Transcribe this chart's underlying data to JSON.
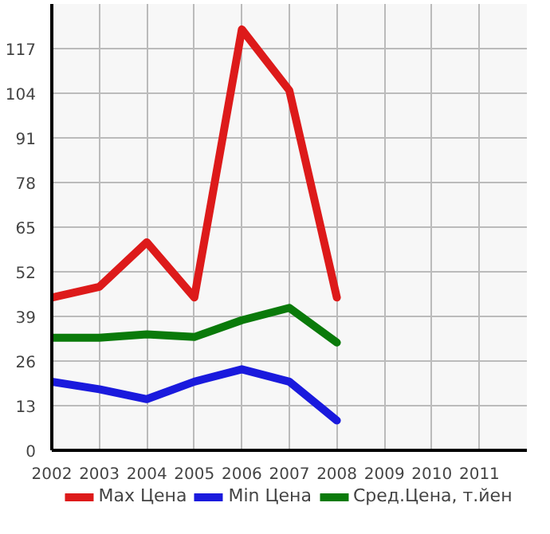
{
  "chart_data": {
    "type": "line",
    "x": [
      2002,
      2003,
      2004,
      2005,
      2006,
      2007,
      2008
    ],
    "series": [
      {
        "name": "Max Цена",
        "color": "#dd1a1a",
        "values": [
          44.5,
          47.6,
          60.6,
          44.5,
          122.6,
          104.8,
          44.5
        ]
      },
      {
        "name": "Min Цена",
        "color": "#1a1add",
        "values": [
          20,
          17.8,
          14.9,
          20,
          23.6,
          20,
          8.7
        ]
      },
      {
        "name": "Сред.Цена, т.йен",
        "color": "#0a7a0a",
        "values": [
          32.8,
          32.8,
          33.8,
          33,
          37.9,
          41.5,
          31.4
        ]
      }
    ],
    "xlim": [
      2002,
      2012
    ],
    "xticks": [
      2002,
      2003,
      2004,
      2005,
      2006,
      2007,
      2008,
      2009,
      2010,
      2011
    ],
    "ylim": [
      0,
      130
    ],
    "yticks": [
      0,
      13,
      26,
      39,
      52,
      65,
      78,
      91,
      104,
      117
    ],
    "grid": true,
    "legend": "bottom",
    "marker": "none",
    "line_style": "solid"
  }
}
